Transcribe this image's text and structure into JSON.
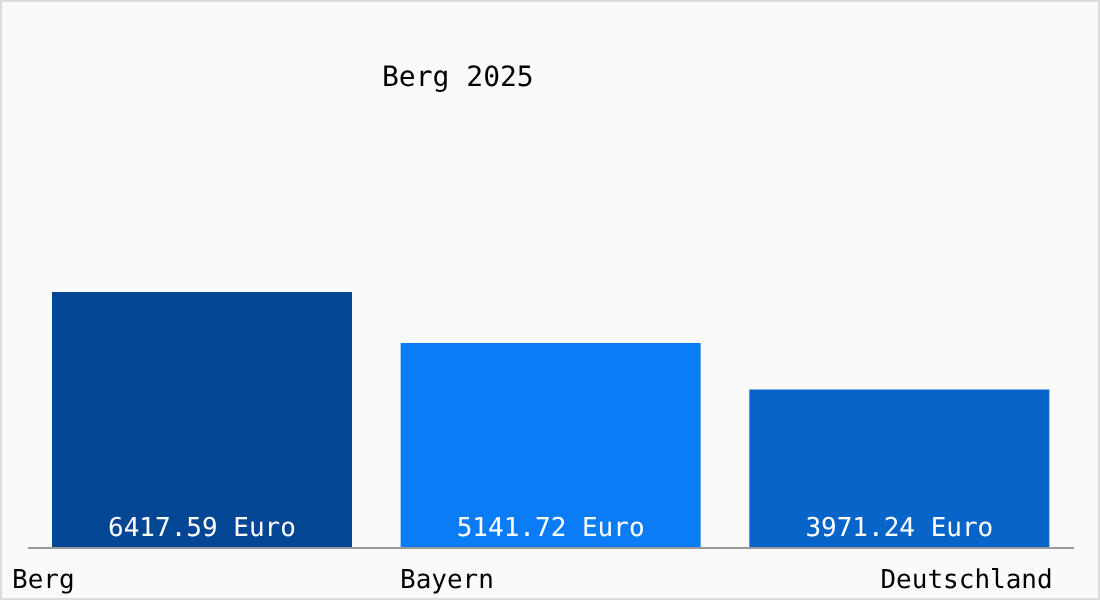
{
  "chart_data": {
    "type": "bar",
    "title": "Berg 2025",
    "categories": [
      "Berg",
      "Bayern",
      "Deutschland"
    ],
    "values": [
      6417.59,
      5141.72,
      3971.24
    ],
    "colors": [
      "#034694",
      "#0a7cf6",
      "#0764c8"
    ],
    "value_labels": [
      "6417.59 Euro",
      "5141.72 Euro",
      "3971.24 Euro"
    ],
    "grid": false,
    "legend": false
  }
}
